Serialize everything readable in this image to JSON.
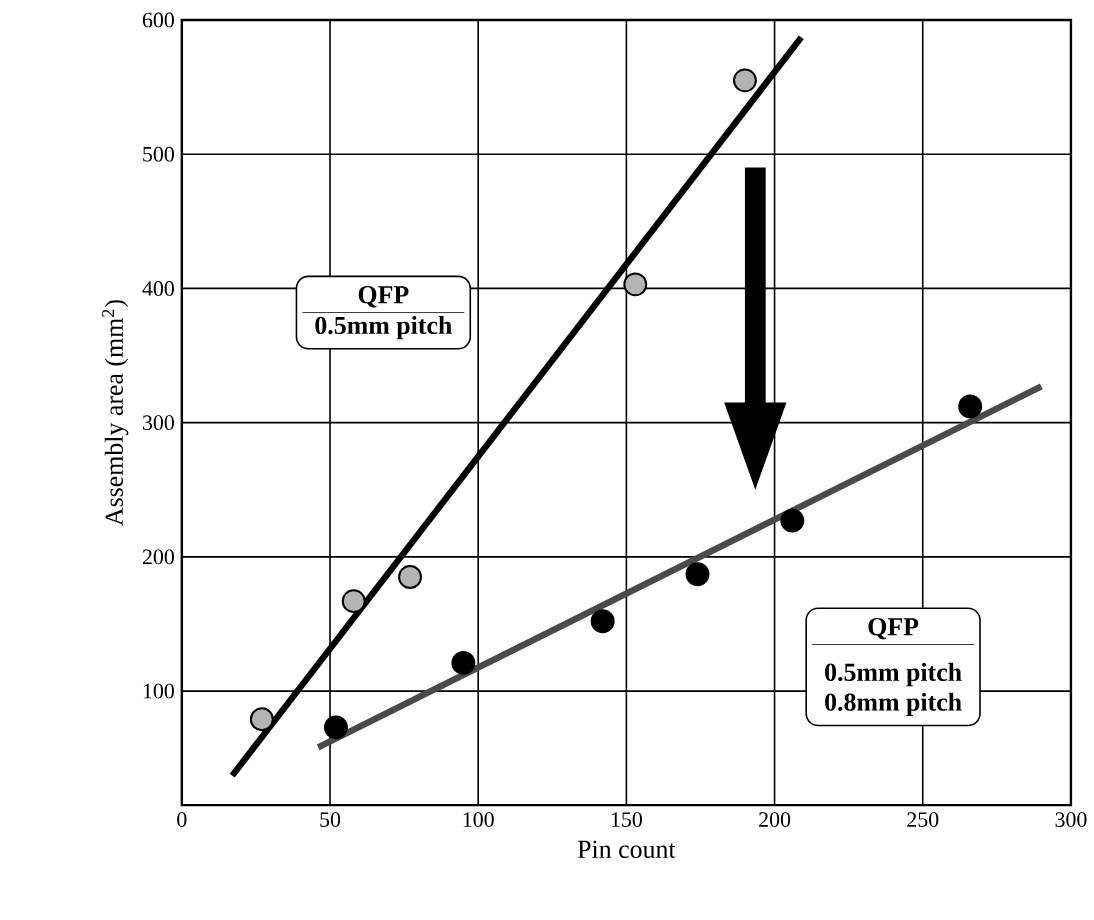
{
  "chart_data": {
    "type": "scatter",
    "xlabel": "Pin count",
    "ylabel": "Assembly area (mm$^{2}$)",
    "xlim": [
      0,
      300
    ],
    "ylim": [
      15,
      600
    ],
    "xticks": [
      0,
      50,
      100,
      150,
      200,
      250,
      300
    ],
    "yticks": [
      100,
      200,
      300,
      400,
      500,
      600
    ],
    "grid": true,
    "series": [
      {
        "marker": "circle",
        "color": "#b4b4b4",
        "x": [
          27,
          58,
          77,
          153,
          190
        ],
        "values": [
          79,
          167,
          185,
          403,
          555
        ]
      },
      {
        "marker": "circle",
        "color": "#000000",
        "x": [
          52,
          95,
          142,
          174,
          206,
          266
        ],
        "values": [
          73,
          121,
          152,
          187,
          227,
          312
        ]
      },
      {
        "type": "line",
        "marker": "none",
        "color": "#000000",
        "x": [
          17,
          209
        ],
        "values": [
          37,
          587
        ]
      },
      {
        "type": "line",
        "marker": "none",
        "color": "#4a4a4a",
        "x": [
          46,
          290
        ],
        "values": [
          58,
          327
        ]
      }
    ],
    "annotations": [
      "QFP",
      "0.5mm pitch",
      "QFP",
      "0.5mm pitch",
      "0.8mm pitch"
    ]
  }
}
